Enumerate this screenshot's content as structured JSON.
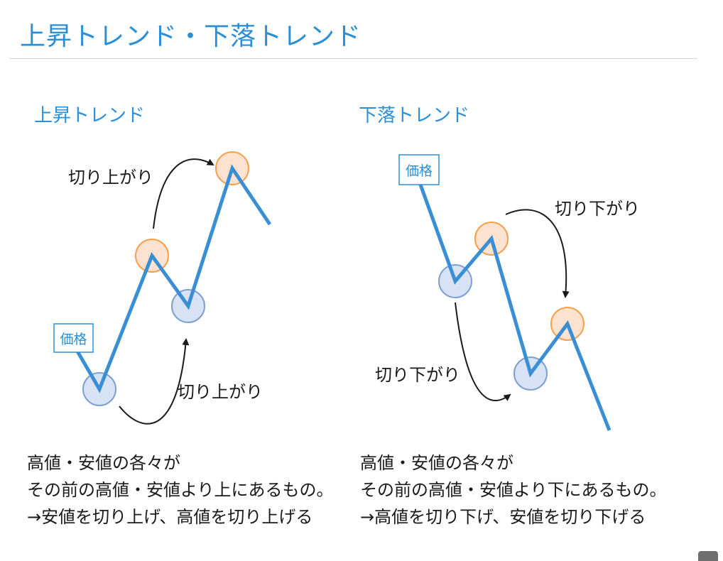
{
  "title": "上昇トレンド・下落トレンド",
  "uptrend": {
    "heading": "上昇トレンド",
    "price_label": "価格",
    "arrow_label_high": "切り上がり",
    "arrow_label_low": "切り上がり",
    "caption": [
      "高値・安値の各々が",
      "その前の高値・安値より上にあるもの。",
      "→安値を切り上げ、高値を切り上げる"
    ]
  },
  "downtrend": {
    "heading": "下落トレンド",
    "price_label": "価格",
    "arrow_label_high": "切り下がり",
    "arrow_label_low": "切り下がり",
    "caption": [
      "高値・安値の各々が",
      "その前の高値・安値より下にあるもの。",
      "→高値を切り下げ、安値を切り下げる"
    ]
  },
  "colors": {
    "title": "#2b8fd6",
    "line": "#3a8fd4",
    "high_fill": "#fde3cf",
    "high_stroke": "#f5a04f",
    "low_fill": "#d7e3f4",
    "low_stroke": "#7f9fd1",
    "label_box": "#2b8fd6"
  }
}
